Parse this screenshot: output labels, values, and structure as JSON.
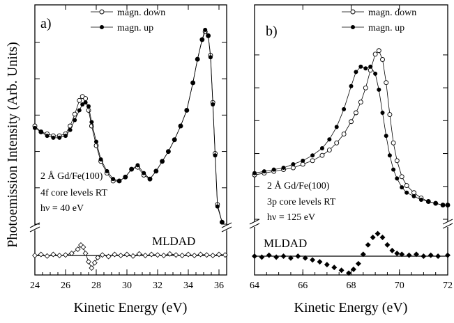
{
  "ylabel": "Photoemission Intensity (Arb. Units)",
  "colors": {
    "line": "#000000",
    "open_marker_fill": "#ffffff",
    "filled_marker": "#000000"
  },
  "chart_data": [
    {
      "type": "scatter",
      "panel_label": "a)",
      "xlabel": "Kinetic Energy (eV)",
      "xlim": [
        24,
        36.5
      ],
      "xticks": [
        24,
        26,
        28,
        30,
        32,
        34,
        36
      ],
      "xtick_labels": [
        "24",
        "26",
        "28",
        "30",
        "32",
        "34",
        "36"
      ],
      "y_axis_break": true,
      "legend_placement": "top-center",
      "annotation": [
        "2 Å Gd/Fe(100)",
        "4f core levels RT",
        "hν = 40 eV"
      ],
      "difference_label": "MLDAD",
      "series": [
        {
          "name": "magn. down",
          "marker": "open-circle",
          "connected": true,
          "x": [
            24.0,
            24.4,
            24.8,
            25.2,
            25.6,
            26.0,
            26.3,
            26.6,
            26.9,
            27.1,
            27.3,
            27.5,
            27.7,
            28.0,
            28.3,
            28.7,
            29.1,
            29.5,
            29.9,
            30.3,
            30.7,
            31.1,
            31.5,
            31.9,
            32.3,
            32.7,
            33.1,
            33.5,
            33.9,
            34.3,
            34.6,
            34.9,
            35.1,
            35.3,
            35.45,
            35.6,
            35.75,
            35.9,
            36.2
          ],
          "y": [
            0.5,
            0.47,
            0.46,
            0.45,
            0.45,
            0.46,
            0.5,
            0.56,
            0.63,
            0.65,
            0.64,
            0.58,
            0.5,
            0.4,
            0.32,
            0.26,
            0.22,
            0.22,
            0.24,
            0.28,
            0.29,
            0.25,
            0.23,
            0.27,
            0.32,
            0.37,
            0.43,
            0.5,
            0.58,
            0.72,
            0.84,
            0.94,
            0.98,
            0.96,
            0.86,
            0.62,
            0.36,
            0.1,
            0.01
          ]
        },
        {
          "name": "magn. up",
          "marker": "filled-circle",
          "connected": true,
          "x": [
            24.0,
            24.4,
            24.8,
            25.2,
            25.6,
            26.0,
            26.3,
            26.6,
            26.9,
            27.1,
            27.3,
            27.5,
            27.7,
            28.0,
            28.3,
            28.7,
            29.1,
            29.5,
            29.9,
            30.3,
            30.7,
            31.1,
            31.5,
            31.9,
            32.3,
            32.7,
            33.1,
            33.5,
            33.9,
            34.3,
            34.6,
            34.9,
            35.1,
            35.3,
            35.45,
            35.6,
            35.75,
            35.9,
            36.2
          ],
          "y": [
            0.49,
            0.47,
            0.45,
            0.44,
            0.44,
            0.45,
            0.48,
            0.53,
            0.58,
            0.61,
            0.62,
            0.6,
            0.52,
            0.42,
            0.33,
            0.27,
            0.23,
            0.22,
            0.24,
            0.28,
            0.3,
            0.26,
            0.23,
            0.27,
            0.32,
            0.37,
            0.43,
            0.5,
            0.58,
            0.72,
            0.84,
            0.94,
            0.99,
            0.96,
            0.85,
            0.61,
            0.35,
            0.09,
            0.01
          ]
        },
        {
          "name": "MLDAD",
          "marker": "open-diamond",
          "connected": true,
          "with_zero_line": true,
          "x": [
            24.0,
            24.4,
            24.8,
            25.2,
            25.6,
            26.0,
            26.4,
            26.8,
            27.0,
            27.15,
            27.3,
            27.5,
            27.7,
            27.9,
            28.1,
            28.4,
            28.8,
            29.2,
            29.6,
            30.0,
            30.4,
            30.8,
            31.2,
            31.6,
            32.0,
            32.4,
            32.8,
            33.2,
            33.6,
            34.0,
            34.4,
            34.8,
            35.2,
            35.6,
            36.0,
            36.4
          ],
          "y": [
            0.0,
            0.1,
            -0.05,
            0.1,
            0.0,
            0.05,
            0.2,
            0.6,
            1.0,
            0.8,
            0.2,
            -0.6,
            -1.2,
            -0.7,
            -0.2,
            0.05,
            -0.1,
            0.1,
            0.0,
            0.1,
            -0.05,
            0.15,
            0.0,
            0.1,
            0.05,
            0.0,
            0.15,
            0.05,
            0.0,
            0.1,
            0.0,
            0.1,
            0.05,
            0.0,
            0.1,
            0.05
          ]
        }
      ]
    },
    {
      "type": "scatter",
      "panel_label": "b)",
      "xlabel": "Kinetic Energy (eV)",
      "xlim": [
        64,
        72
      ],
      "xticks": [
        64,
        66,
        68,
        70,
        72
      ],
      "xtick_labels": [
        "64",
        "66",
        "68",
        "70",
        "72"
      ],
      "y_axis_break": true,
      "legend_placement": "top-center",
      "annotation": [
        "2 Å Gd/Fe(100)",
        "3p core levels RT",
        "hν = 125 eV"
      ],
      "difference_label": "MLDAD",
      "series": [
        {
          "name": "magn. down",
          "marker": "open-circle",
          "connected": true,
          "x": [
            64.0,
            64.4,
            64.8,
            65.2,
            65.6,
            66.0,
            66.4,
            66.8,
            67.1,
            67.4,
            67.7,
            68.0,
            68.2,
            68.4,
            68.6,
            68.8,
            69.0,
            69.15,
            69.3,
            69.45,
            69.6,
            69.75,
            69.9,
            70.1,
            70.3,
            70.6,
            70.9,
            71.2,
            71.5,
            71.8,
            72.0
          ],
          "y": [
            0.25,
            0.26,
            0.27,
            0.28,
            0.29,
            0.31,
            0.33,
            0.36,
            0.39,
            0.43,
            0.48,
            0.55,
            0.6,
            0.66,
            0.74,
            0.84,
            0.93,
            0.95,
            0.9,
            0.77,
            0.59,
            0.43,
            0.33,
            0.24,
            0.19,
            0.15,
            0.12,
            0.1,
            0.09,
            0.08,
            0.08
          ]
        },
        {
          "name": "magn. up",
          "marker": "filled-circle",
          "connected": true,
          "x": [
            64.0,
            64.4,
            64.8,
            65.2,
            65.6,
            66.0,
            66.4,
            66.8,
            67.1,
            67.4,
            67.7,
            68.0,
            68.2,
            68.4,
            68.6,
            68.8,
            69.0,
            69.15,
            69.3,
            69.45,
            69.6,
            69.75,
            69.9,
            70.1,
            70.3,
            70.6,
            70.9,
            71.2,
            71.5,
            71.8,
            72.0
          ],
          "y": [
            0.26,
            0.27,
            0.28,
            0.29,
            0.31,
            0.33,
            0.36,
            0.4,
            0.45,
            0.52,
            0.62,
            0.75,
            0.83,
            0.86,
            0.85,
            0.86,
            0.82,
            0.73,
            0.6,
            0.47,
            0.36,
            0.28,
            0.23,
            0.18,
            0.15,
            0.13,
            0.11,
            0.1,
            0.09,
            0.08,
            0.08
          ]
        },
        {
          "name": "MLDAD",
          "marker": "filled-diamond",
          "connected": false,
          "with_zero_line": true,
          "x": [
            64.0,
            64.3,
            64.6,
            64.9,
            65.2,
            65.5,
            65.8,
            66.1,
            66.4,
            66.7,
            67.0,
            67.3,
            67.6,
            67.9,
            68.1,
            68.3,
            68.5,
            68.7,
            68.9,
            69.1,
            69.3,
            69.5,
            69.7,
            69.9,
            70.1,
            70.4,
            70.7,
            71.0,
            71.3,
            71.6,
            72.0
          ],
          "y": [
            0.0,
            -0.05,
            0.05,
            -0.05,
            0.0,
            -0.1,
            0.0,
            -0.1,
            -0.2,
            -0.3,
            -0.45,
            -0.6,
            -0.75,
            -0.9,
            -0.7,
            -0.4,
            0.1,
            0.6,
            1.0,
            1.2,
            1.0,
            0.6,
            0.3,
            0.15,
            0.1,
            0.05,
            0.1,
            0.0,
            0.05,
            0.0,
            0.05
          ]
        }
      ]
    }
  ]
}
